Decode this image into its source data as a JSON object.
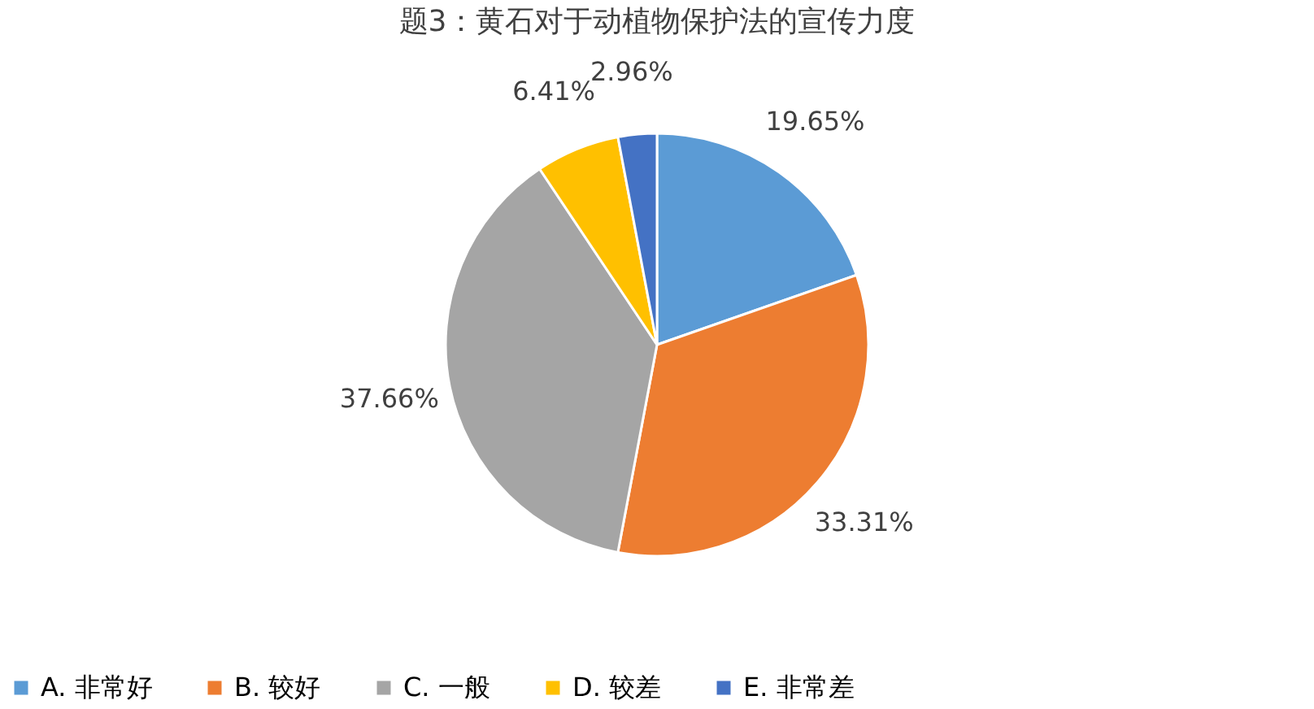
{
  "chart_data": {
    "type": "pie",
    "title": "题3：黄石对于动植物保护法的宣传力度",
    "categories": [
      "A. 非常好",
      "B. 较好",
      "C. 一般",
      "D. 较差",
      "E. 非常差"
    ],
    "values": [
      19.65,
      33.31,
      37.66,
      6.41,
      2.96
    ],
    "colors": [
      "#5b9bd5",
      "#ed7d31",
      "#a5a5a5",
      "#ffc000",
      "#4472c4"
    ],
    "value_labels": [
      "19.65%",
      "33.31%",
      "37.66%",
      "6.41%",
      "2.96%"
    ],
    "legend": "bottom"
  }
}
